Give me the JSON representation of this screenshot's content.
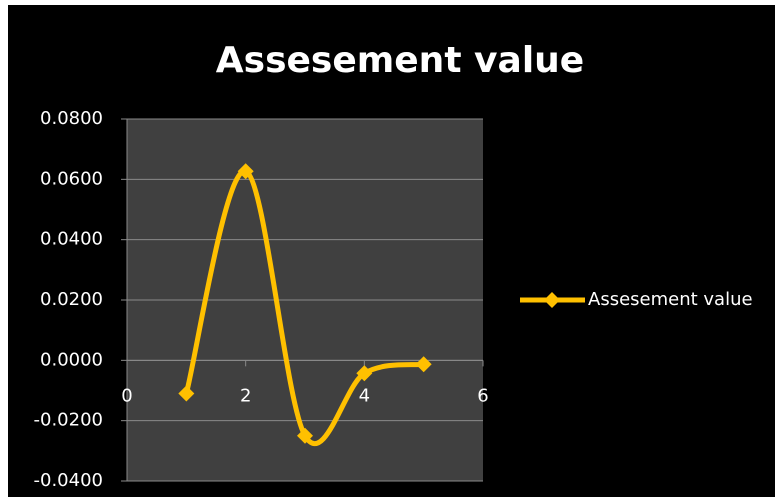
{
  "chart_data": {
    "type": "line",
    "smooth": true,
    "title": "Assesement value",
    "x": [
      1,
      2,
      3,
      4,
      5
    ],
    "series": [
      {
        "name": "Assesement value",
        "color": "#FFC000",
        "values": [
          -0.011,
          0.0627,
          -0.025,
          -0.0043,
          -0.0013
        ]
      }
    ],
    "xlim": [
      0,
      6
    ],
    "xticks": [
      0,
      2,
      4,
      6
    ],
    "ylim": [
      -0.04,
      0.08
    ],
    "yticks": [
      {
        "value": -0.04,
        "label": "-0.0400"
      },
      {
        "value": -0.02,
        "label": "-0.0200"
      },
      {
        "value": 0,
        "label": "0.0000"
      },
      {
        "value": 0.02,
        "label": "0.0200"
      },
      {
        "value": 0.04,
        "label": "0.0400"
      },
      {
        "value": 0.06,
        "label": "0.0600"
      },
      {
        "value": 0.08,
        "label": "0.0800"
      }
    ],
    "grid": true,
    "legend": "right"
  }
}
